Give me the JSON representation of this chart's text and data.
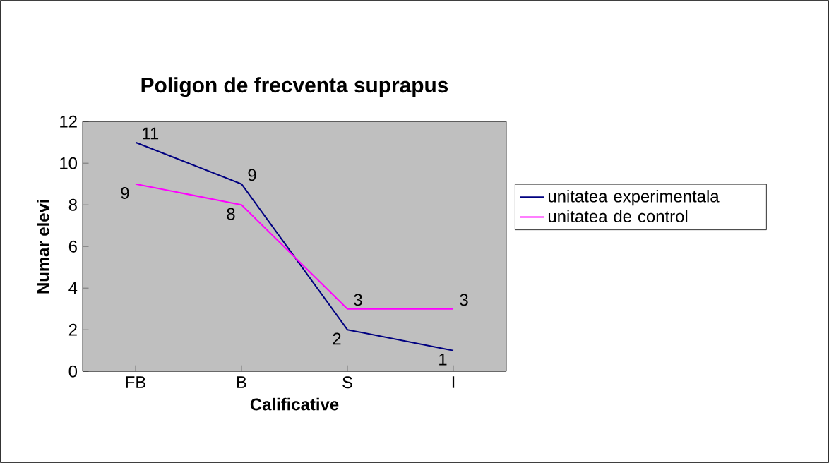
{
  "chart_data": {
    "type": "line",
    "title": "Poligon de frecventa suprapus",
    "xlabel": "Calificative",
    "ylabel": "Numar elevi",
    "categories": [
      "FB",
      "B",
      "S",
      "I"
    ],
    "series": [
      {
        "name": "unitatea experimentala",
        "color": "#000080",
        "values": [
          11,
          9,
          2,
          1
        ]
      },
      {
        "name": "unitatea de control",
        "color": "#ff00ff",
        "values": [
          9,
          8,
          3,
          3
        ]
      }
    ],
    "ylim": [
      0,
      12
    ],
    "yticks": [
      0,
      2,
      4,
      6,
      8,
      10,
      12
    ],
    "data_labels": true,
    "legend": "right",
    "grid": false,
    "marker": "none"
  }
}
